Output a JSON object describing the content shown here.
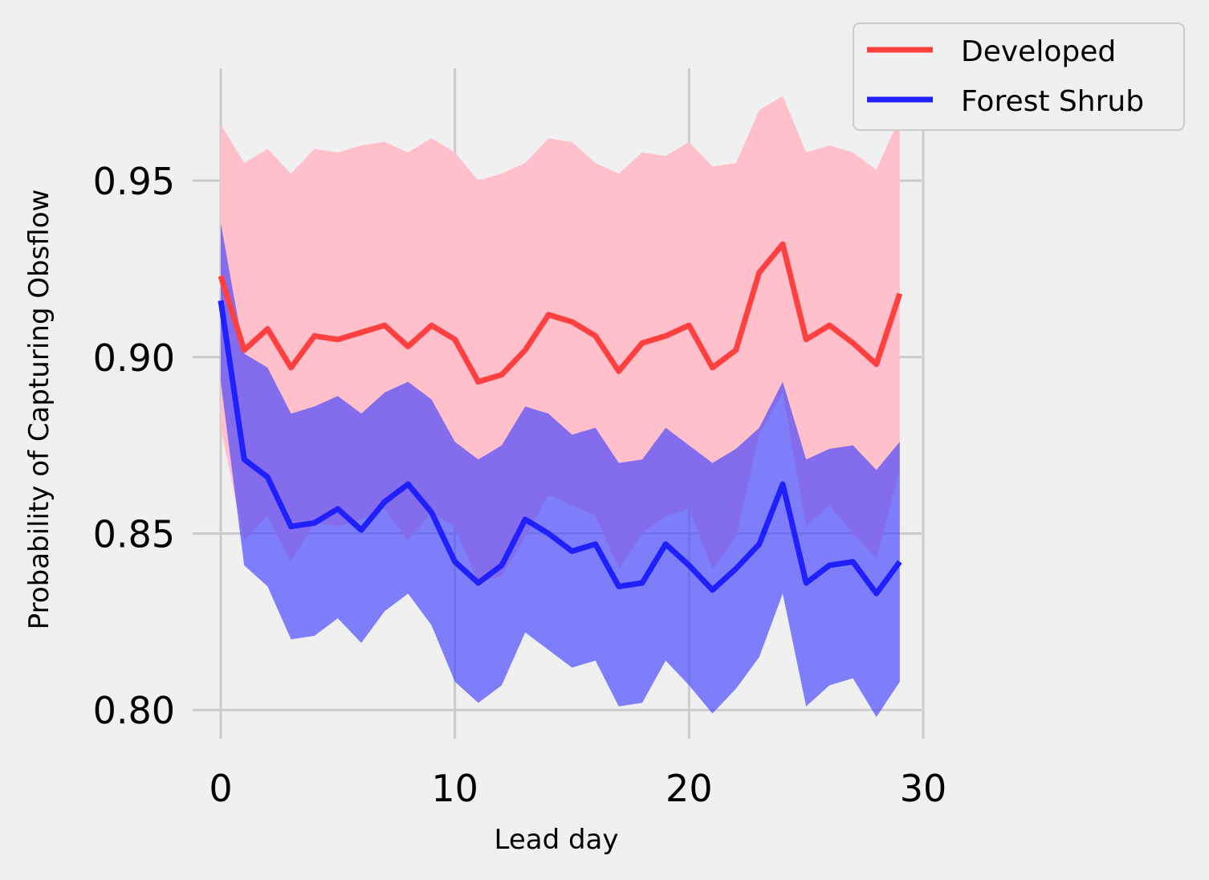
{
  "chart_data": {
    "type": "line",
    "xlabel": "Lead day",
    "ylabel": "Probability of Capturing Obsflow",
    "xlim": [
      -1.2,
      30
    ],
    "ylim": [
      0.793,
      0.983
    ],
    "xticks": [
      0,
      10,
      20,
      30
    ],
    "yticks": [
      0.8,
      0.85,
      0.9,
      0.95
    ],
    "xtick_labels": [
      "0",
      "10",
      "20",
      "30"
    ],
    "ytick_labels": [
      "0.80",
      "0.85",
      "0.90",
      "0.95"
    ],
    "grid": true,
    "legend_position": "top-right",
    "x": [
      0,
      1,
      2,
      3,
      4,
      5,
      6,
      7,
      8,
      9,
      10,
      11,
      12,
      13,
      14,
      15,
      16,
      17,
      18,
      19,
      20,
      21,
      22,
      23,
      24,
      25,
      26,
      27,
      28,
      29
    ],
    "series": [
      {
        "name": "Developed",
        "color": "#ff4040",
        "band_color": "#ffc0cb",
        "mean": [
          0.923,
          0.902,
          0.908,
          0.897,
          0.906,
          0.905,
          0.907,
          0.909,
          0.903,
          0.909,
          0.905,
          0.893,
          0.895,
          0.902,
          0.912,
          0.91,
          0.906,
          0.896,
          0.904,
          0.906,
          0.909,
          0.897,
          0.902,
          0.924,
          0.932,
          0.905,
          0.909,
          0.904,
          0.898,
          0.918
        ],
        "upper": [
          0.966,
          0.955,
          0.959,
          0.952,
          0.959,
          0.958,
          0.96,
          0.961,
          0.958,
          0.962,
          0.958,
          0.95,
          0.952,
          0.955,
          0.962,
          0.961,
          0.955,
          0.952,
          0.958,
          0.957,
          0.961,
          0.954,
          0.955,
          0.97,
          0.974,
          0.958,
          0.96,
          0.958,
          0.953,
          0.968
        ],
        "lower": [
          0.88,
          0.848,
          0.855,
          0.842,
          0.853,
          0.852,
          0.854,
          0.857,
          0.848,
          0.856,
          0.852,
          0.836,
          0.838,
          0.849,
          0.861,
          0.858,
          0.855,
          0.84,
          0.85,
          0.855,
          0.857,
          0.84,
          0.849,
          0.878,
          0.89,
          0.852,
          0.858,
          0.85,
          0.843,
          0.868
        ]
      },
      {
        "name": "Forest Shrub",
        "color": "#2020ff",
        "band_color": "#4040ff",
        "mean": [
          0.916,
          0.871,
          0.866,
          0.852,
          0.853,
          0.857,
          0.851,
          0.859,
          0.864,
          0.856,
          0.842,
          0.836,
          0.841,
          0.854,
          0.85,
          0.845,
          0.847,
          0.835,
          0.836,
          0.847,
          0.841,
          0.834,
          0.84,
          0.847,
          0.864,
          0.836,
          0.841,
          0.842,
          0.833,
          0.842
        ],
        "upper": [
          0.938,
          0.901,
          0.897,
          0.884,
          0.886,
          0.889,
          0.884,
          0.89,
          0.893,
          0.888,
          0.876,
          0.871,
          0.875,
          0.886,
          0.884,
          0.878,
          0.88,
          0.87,
          0.871,
          0.88,
          0.875,
          0.87,
          0.874,
          0.88,
          0.893,
          0.871,
          0.874,
          0.875,
          0.868,
          0.876
        ],
        "lower": [
          0.893,
          0.841,
          0.835,
          0.82,
          0.821,
          0.826,
          0.819,
          0.828,
          0.833,
          0.824,
          0.808,
          0.802,
          0.807,
          0.822,
          0.817,
          0.812,
          0.814,
          0.801,
          0.802,
          0.814,
          0.807,
          0.799,
          0.806,
          0.815,
          0.833,
          0.801,
          0.807,
          0.809,
          0.798,
          0.808
        ]
      }
    ]
  }
}
